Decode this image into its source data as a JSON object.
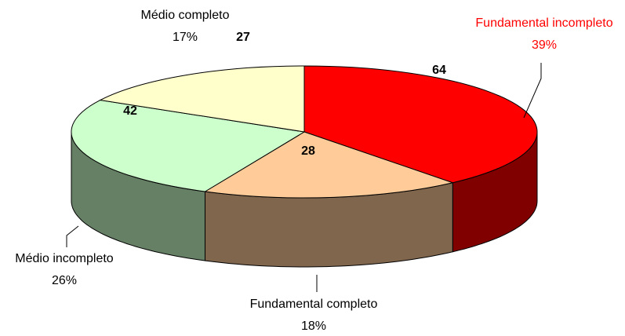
{
  "chart_data": {
    "type": "pie3d",
    "categories": [
      "Fundamental incompleto",
      "Fundamental completo",
      "Médio incompleto",
      "Médio completo"
    ],
    "values": [
      39,
      18,
      26,
      17
    ],
    "value_labels": [
      "39%",
      "18%",
      "26%",
      "17%"
    ],
    "counts": [
      64,
      28,
      42,
      27
    ],
    "colors": [
      "#ff0000",
      "#ffcc99",
      "#ccffcc",
      "#ffffcc"
    ],
    "label_colors": [
      "#ff0000",
      "#000000",
      "#000000",
      "#000000"
    ]
  }
}
